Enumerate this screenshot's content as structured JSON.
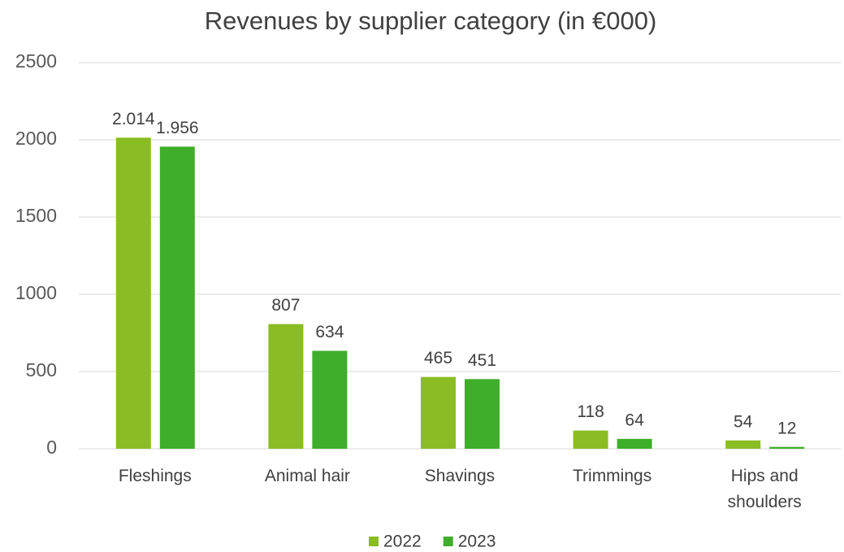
{
  "chart_data": {
    "type": "bar",
    "title": "Revenues by supplier category (in €000)",
    "categories": [
      "Fleshings",
      "Animal hair",
      "Shavings",
      "Trimmings",
      "Hips and shoulders"
    ],
    "series": [
      {
        "name": "2022",
        "color": "#8abd24",
        "values": [
          2014,
          807,
          465,
          118,
          54
        ],
        "value_labels": [
          "2.014",
          "807",
          "465",
          "118",
          "54"
        ]
      },
      {
        "name": "2023",
        "color": "#3fae2a",
        "values": [
          1956,
          634,
          451,
          64,
          12
        ],
        "value_labels": [
          "1.956",
          "634",
          "451",
          "64",
          "12"
        ]
      }
    ],
    "ylim": [
      0,
      2500
    ],
    "yticks": [
      0,
      500,
      1000,
      1500,
      2000,
      2500
    ],
    "grid": true,
    "legend": "bottom"
  }
}
